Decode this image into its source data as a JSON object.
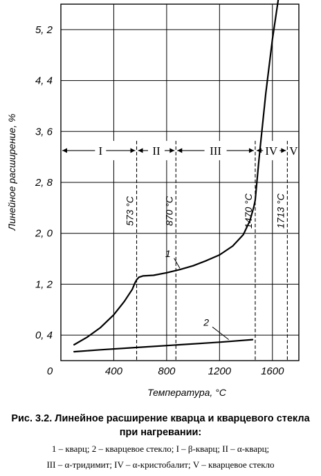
{
  "chart_data": {
    "type": "line",
    "xlabel": "Температура, °С",
    "ylabel": "Линейное расширение, %",
    "xlim": [
      0,
      1800
    ],
    "ylim": [
      0,
      5.6
    ],
    "x_ticks": [
      0,
      400,
      800,
      1200,
      1600
    ],
    "x_tick_labels": [
      "0",
      "400",
      "800",
      "1200",
      "1600"
    ],
    "y_ticks": [
      0.4,
      1.2,
      2.0,
      2.8,
      3.6,
      4.4,
      5.2
    ],
    "y_tick_labels": [
      "0, 4",
      "1, 2",
      "2, 0",
      "2, 8",
      "3, 6",
      "4, 4",
      "5, 2"
    ],
    "grid": true,
    "series": [
      {
        "name": "1",
        "x": [
          100,
          200,
          300,
          400,
          480,
          540,
          560,
          573,
          590,
          620,
          700,
          800,
          900,
          1000,
          1100,
          1200,
          1300,
          1380,
          1430,
          1460,
          1470,
          1500,
          1550,
          1600,
          1650
        ],
        "y": [
          0.25,
          0.37,
          0.52,
          0.72,
          0.93,
          1.12,
          1.22,
          1.27,
          1.31,
          1.33,
          1.34,
          1.38,
          1.43,
          1.49,
          1.57,
          1.66,
          1.8,
          1.98,
          2.2,
          2.42,
          2.52,
          3.2,
          4.2,
          5.05,
          5.75
        ]
      },
      {
        "name": "2",
        "x": [
          100,
          300,
          600,
          900,
          1200,
          1450
        ],
        "y": [
          0.14,
          0.17,
          0.21,
          0.25,
          0.29,
          0.33
        ]
      }
    ],
    "phase_boundaries": [
      {
        "x": 573,
        "label": "573 °C"
      },
      {
        "x": 870,
        "label": "870 °C"
      },
      {
        "x": 1470,
        "label": "1470 °C"
      },
      {
        "x": 1713,
        "label": "1713 °C"
      }
    ],
    "phase_band_y": 3.3,
    "phases": [
      {
        "label": "I",
        "x": 300
      },
      {
        "label": "II",
        "x": 722
      },
      {
        "label": "III",
        "x": 1170
      },
      {
        "label": "IV",
        "x": 1592
      },
      {
        "label": "V",
        "x": 1760
      }
    ],
    "curve_labels": [
      {
        "label": "1",
        "x": 830,
        "y": 1.63,
        "to_x": 900,
        "to_y": 1.45
      },
      {
        "label": "2",
        "x": 1120,
        "y": 0.55,
        "to_x": 1270,
        "to_y": 0.33
      }
    ]
  },
  "caption": {
    "title_line1": "Рис. 3.2. Линейное расширение кварца и кварцевого стекла",
    "title_line2": "при нагревании:",
    "legend_line1": "1 – кварц; 2 – кварцевое стекло; I – β-кварц; II – α-кварц;",
    "legend_line2": "III – α-тридимит; IV – α-кристобалит; V – кварцевое стекло"
  }
}
